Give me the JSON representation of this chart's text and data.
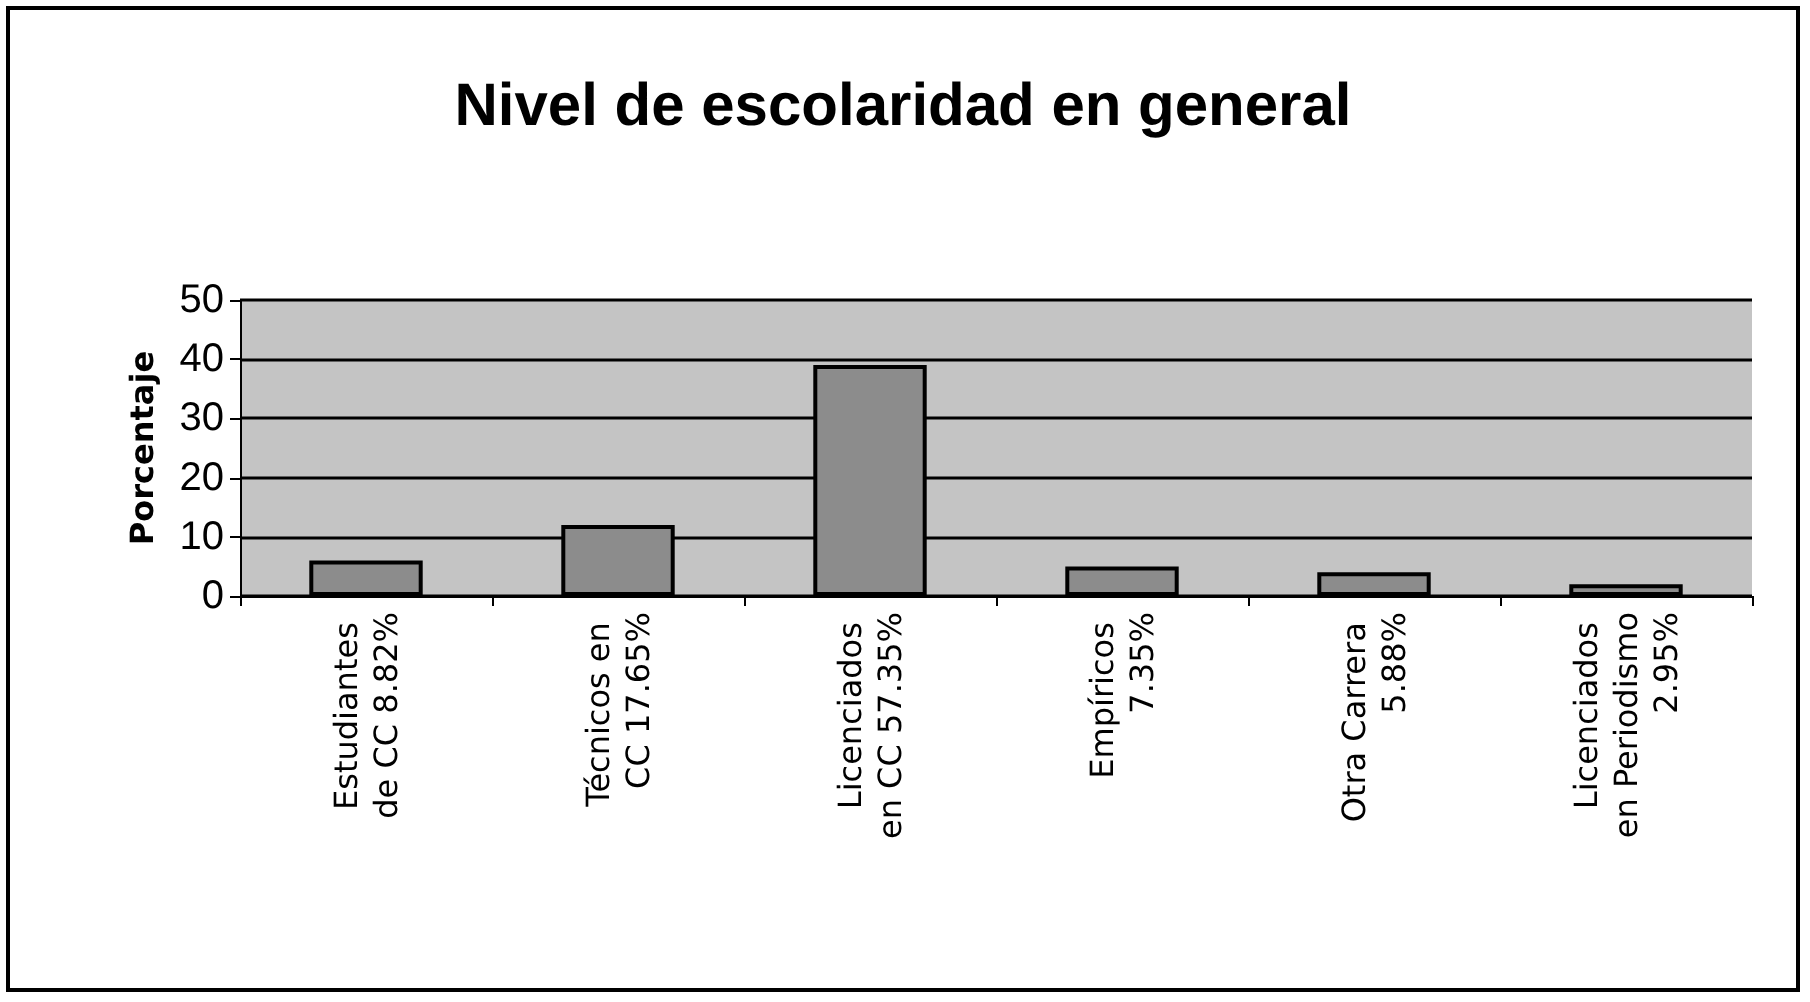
{
  "chart_data": {
    "type": "bar",
    "title": "Nivel de escolaridad en general",
    "ylabel": "Porcentaje",
    "categories": [
      "Estudiantes de CC 8.82%",
      "Técnicos en CC 17.65%",
      "Licenciados en CC 57.35%",
      "Empíricos 7.35%",
      "Otra Carrera 5.88%",
      "Licenciados en Periodismo 2.95%"
    ],
    "values": [
      6,
      12,
      39,
      5,
      4,
      2
    ],
    "color": "#8c8c8c",
    "ylim": [
      0,
      50
    ],
    "yticks": [
      0,
      10,
      20,
      30,
      40,
      50
    ],
    "grid": "y"
  }
}
